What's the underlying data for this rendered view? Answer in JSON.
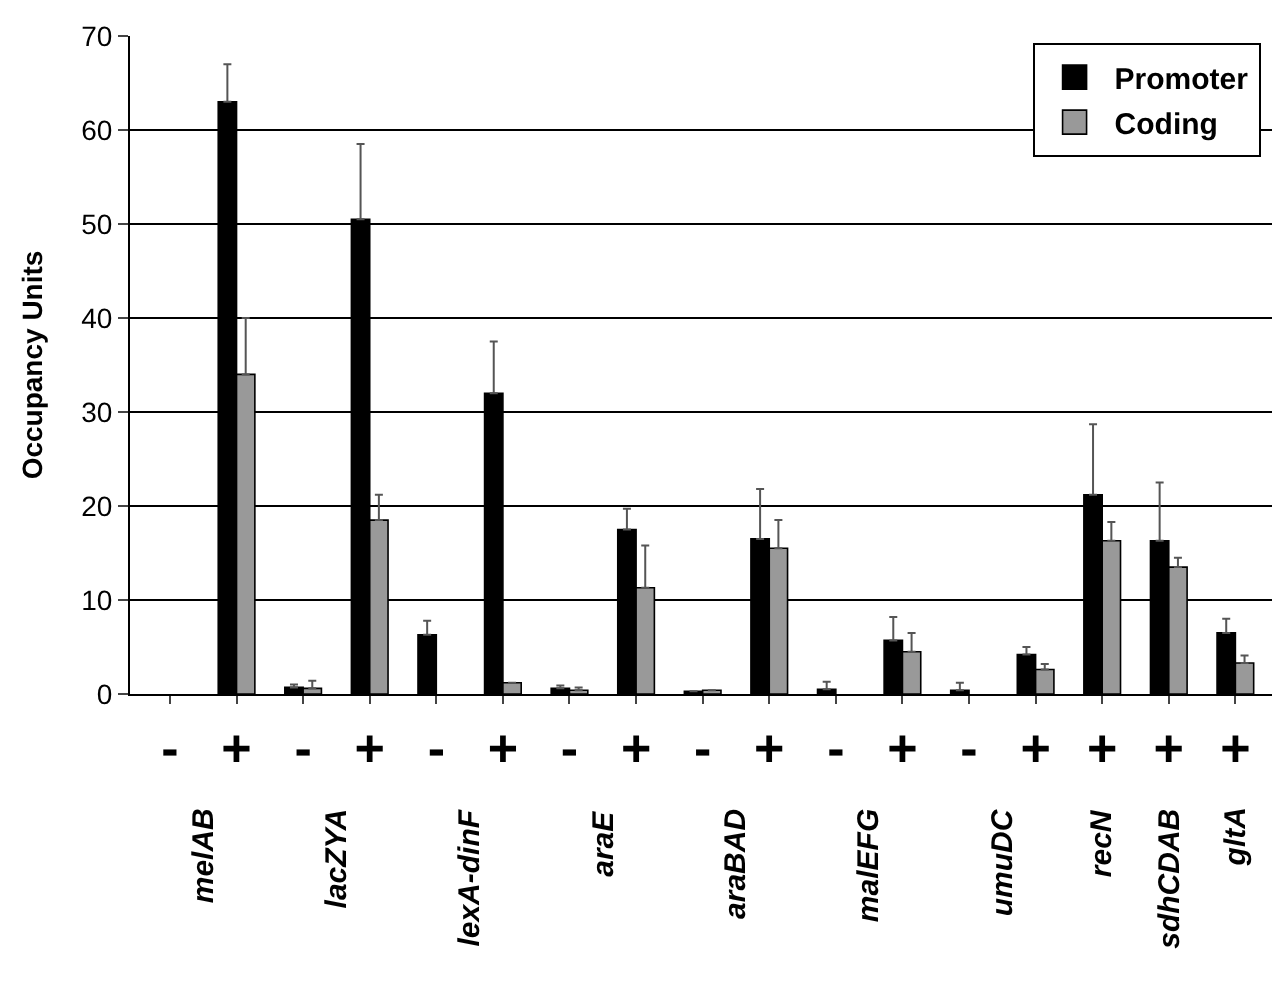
{
  "chart_data": {
    "type": "bar",
    "ylabel": "Occupancy Units",
    "categories": [
      "-",
      "+",
      "-",
      "+",
      "-",
      "+",
      "-",
      "+",
      "-",
      "+",
      "-",
      "+",
      "-",
      "+",
      "+",
      "+",
      "+"
    ],
    "series": [
      {
        "name": "Promoter",
        "color": "#000000",
        "values": [
          null,
          63,
          0.7,
          50.5,
          6.3,
          32,
          0.6,
          17.5,
          0.3,
          16.5,
          0.5,
          5.7,
          0.4,
          4.2,
          21.2,
          16.3,
          6.5
        ],
        "errors": [
          null,
          4,
          0.3,
          8,
          1.5,
          5.5,
          0.3,
          2.2,
          null,
          5.3,
          0.8,
          2.5,
          0.8,
          0.8,
          7.5,
          6.2,
          1.5
        ]
      },
      {
        "name": "Coding",
        "color": "#999999",
        "values": [
          null,
          34,
          0.6,
          18.5,
          null,
          1.2,
          0.4,
          11.3,
          0.4,
          15.5,
          null,
          4.5,
          null,
          2.6,
          16.3,
          13.5,
          3.3
        ],
        "errors": [
          null,
          6,
          0.8,
          2.7,
          null,
          null,
          0.3,
          4.5,
          null,
          3,
          null,
          2,
          null,
          0.6,
          2,
          1,
          0.8
        ]
      }
    ],
    "annotations": [
      "melAB",
      "lacZYA",
      "lexA-dinF",
      "araE",
      "araBAD",
      "malEFG",
      "umuDC",
      "recN",
      "sdhCDAB",
      "gltA"
    ],
    "ylim": [
      0,
      70
    ],
    "yticks": [
      0,
      10,
      20,
      30,
      40,
      50,
      60,
      70
    ],
    "grid": "y",
    "legend": "top right"
  }
}
